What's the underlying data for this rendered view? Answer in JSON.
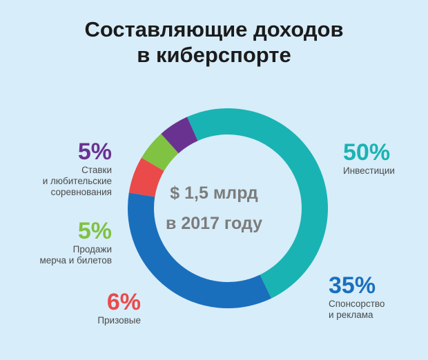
{
  "title_line1": "Составляющие доходов",
  "title_line2": "в киберспорте",
  "center": {
    "line1": "$ 1,5 млрд",
    "line2": "в 2017 году"
  },
  "labels": {
    "investments": {
      "pct": "50%",
      "line1": "Инвестиции"
    },
    "sponsorship": {
      "pct": "35%",
      "line1": "Спонсорство",
      "line2": "и реклама"
    },
    "prizes": {
      "pct": "6%",
      "line1": "Призовые"
    },
    "merch": {
      "pct": "5%",
      "line1": "Продажи",
      "line2": "мерча и билетов"
    },
    "bets": {
      "pct": "5%",
      "line1": "Ставки",
      "line2": "и любительские",
      "line3": "соревнования"
    }
  },
  "chart_data": {
    "type": "pie",
    "title": "Составляющие доходов в киберспорте",
    "categories": [
      "Инвестиции",
      "Спонсорство и реклама",
      "Призовые",
      "Продажи мерча и билетов",
      "Ставки и любительские соревнования"
    ],
    "values": [
      50,
      35,
      6,
      5,
      5
    ],
    "colors": [
      "#1ab3b3",
      "#1a6fbd",
      "#ea4a4a",
      "#80c241",
      "#6a3290"
    ],
    "center_label": "$ 1,5 млрд в 2017 году"
  }
}
